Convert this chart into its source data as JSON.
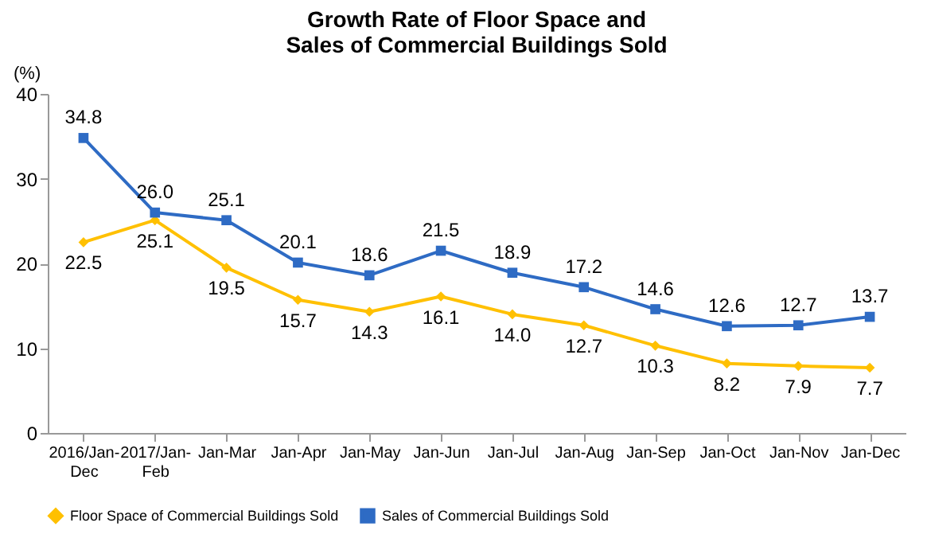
{
  "chart_data": {
    "type": "line",
    "title": "Growth Rate of Floor Space and Sales of Commercial Buildings Sold",
    "ylabel": "(%)",
    "categories": [
      "2016/Jan-Dec",
      "2017/Jan-Feb",
      "Jan-Mar",
      "Jan-Apr",
      "Jan-May",
      "Jan-Jun",
      "Jan-Jul",
      "Jan-Aug",
      "Jan-Sep",
      "Jan-Oct",
      "Jan-Nov",
      "Jan-Dec"
    ],
    "series": [
      {
        "name": "Floor Space of Commercial Buildings Sold",
        "color": "#ffc000",
        "marker": "diamond",
        "values": [
          22.5,
          25.1,
          19.5,
          15.7,
          14.3,
          16.1,
          14.0,
          12.7,
          10.3,
          8.2,
          7.9,
          7.7
        ],
        "value_labels": [
          "22.5",
          "25.1",
          "19.5",
          "15.7",
          "14.3",
          "16.1",
          "14.0",
          "12.7",
          "10.3",
          "8.2",
          "7.9",
          "7.7"
        ]
      },
      {
        "name": "Sales of Commercial Buildings Sold",
        "color": "#2e6bc4",
        "marker": "square",
        "values": [
          34.8,
          26.0,
          25.1,
          20.1,
          18.6,
          21.5,
          18.9,
          17.2,
          14.6,
          12.6,
          12.7,
          13.7
        ],
        "value_labels": [
          "34.8",
          "26.0",
          "25.1",
          "20.1",
          "18.6",
          "21.5",
          "18.9",
          "17.2",
          "14.6",
          "12.6",
          "12.7",
          "13.7"
        ]
      }
    ],
    "ylim": [
      0,
      40
    ],
    "yticks": [
      0,
      10,
      20,
      30,
      40
    ],
    "grid": false,
    "legend": "bottom",
    "line_style": "solid"
  }
}
